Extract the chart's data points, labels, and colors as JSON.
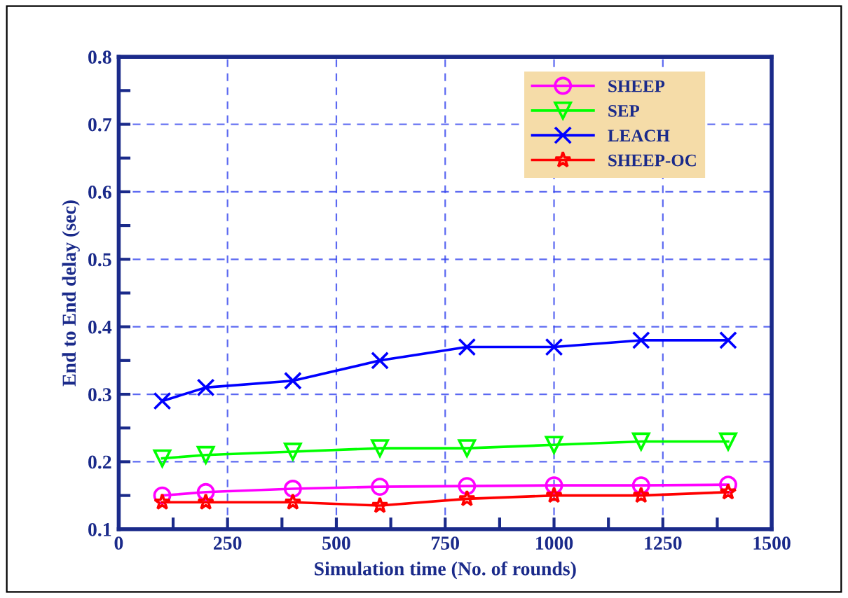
{
  "chart_data": {
    "type": "line",
    "xlabel": "Simulation time (No. of rounds)",
    "ylabel": "End to End delay (sec)",
    "x": [
      100,
      200,
      400,
      600,
      800,
      1000,
      1200,
      1400
    ],
    "series": [
      {
        "name": "SHEEP",
        "color": "#ff00ff",
        "marker": "circle",
        "values": [
          0.15,
          0.155,
          0.16,
          0.163,
          0.164,
          0.165,
          0.165,
          0.166
        ]
      },
      {
        "name": "SEP",
        "color": "#00ff00",
        "marker": "triangle",
        "values": [
          0.205,
          0.21,
          0.215,
          0.22,
          0.22,
          0.225,
          0.23,
          0.23
        ]
      },
      {
        "name": "LEACH",
        "color": "#0000ff",
        "marker": "cross",
        "values": [
          0.29,
          0.31,
          0.32,
          0.35,
          0.37,
          0.37,
          0.38,
          0.38
        ]
      },
      {
        "name": "SHEEP-OC",
        "color": "#ff0000",
        "marker": "star",
        "values": [
          0.14,
          0.14,
          0.14,
          0.135,
          0.145,
          0.15,
          0.15,
          0.155
        ]
      }
    ],
    "xlim": [
      0,
      1500
    ],
    "ylim": [
      0.1,
      0.8
    ],
    "xticks": [
      0,
      {
        "value": 125,
        "label": null
      },
      250,
      {
        "value": 375,
        "label": null
      },
      500,
      {
        "value": 625,
        "label": null
      },
      750,
      {
        "value": 875,
        "label": null
      },
      1000,
      {
        "value": 1125,
        "label": null
      },
      1250,
      {
        "value": 1375,
        "label": null
      },
      1500
    ],
    "yticks": [
      0.1,
      {
        "value": 0.15,
        "label": null
      },
      0.2,
      {
        "value": 0.25,
        "label": null
      },
      0.3,
      {
        "value": 0.35,
        "label": null
      },
      0.4,
      {
        "value": 0.45,
        "label": null
      },
      0.5,
      {
        "value": 0.55,
        "label": null
      },
      0.6,
      {
        "value": 0.65,
        "label": null
      },
      0.7,
      {
        "value": 0.75,
        "label": null
      },
      0.8
    ],
    "grid": true,
    "legend": "top right",
    "line_style": "solid"
  }
}
